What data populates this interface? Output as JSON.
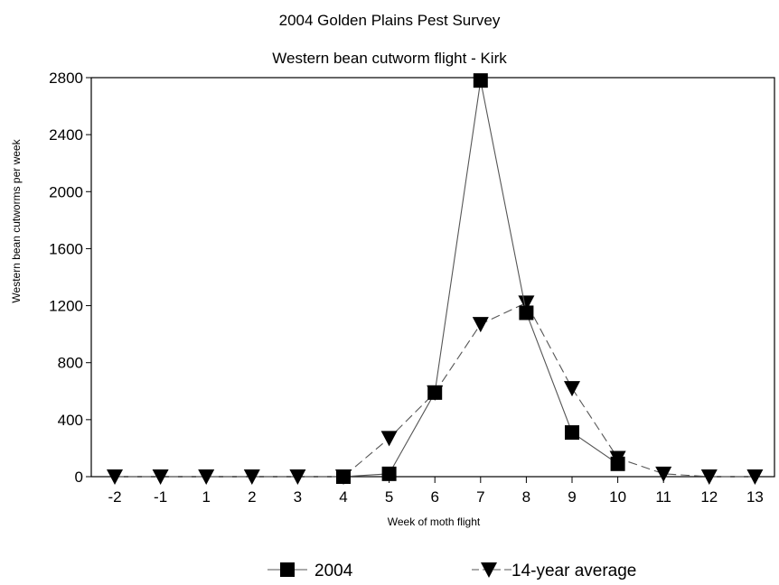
{
  "chart_data": {
    "type": "line",
    "title": "2004 Golden Plains Pest Survey",
    "subtitle": "Western bean cutworm flight - Kirk",
    "xlabel": "Week of moth flight",
    "ylabel": "Western bean cutworms per week",
    "categories": [
      "-2",
      "-1",
      "1",
      "2",
      "3",
      "4",
      "5",
      "6",
      "7",
      "8",
      "9",
      "10",
      "11",
      "12",
      "13"
    ],
    "ylim": [
      0,
      2800
    ],
    "yticks": [
      "0",
      "400",
      "800",
      "1200",
      "1600",
      "2000",
      "2400",
      "2800"
    ],
    "grid": false,
    "legend_position": "bottom",
    "series": [
      {
        "name": "2004",
        "marker": "square",
        "line_style": "solid",
        "values": [
          null,
          null,
          null,
          null,
          null,
          0,
          20,
          590,
          2780,
          1150,
          310,
          90,
          null,
          null,
          null
        ]
      },
      {
        "name": "14-year average",
        "marker": "triangle-down",
        "line_style": "dashed",
        "values": [
          0,
          0,
          0,
          0,
          0,
          0,
          270,
          590,
          1070,
          1220,
          620,
          130,
          20,
          0,
          0
        ]
      }
    ]
  }
}
